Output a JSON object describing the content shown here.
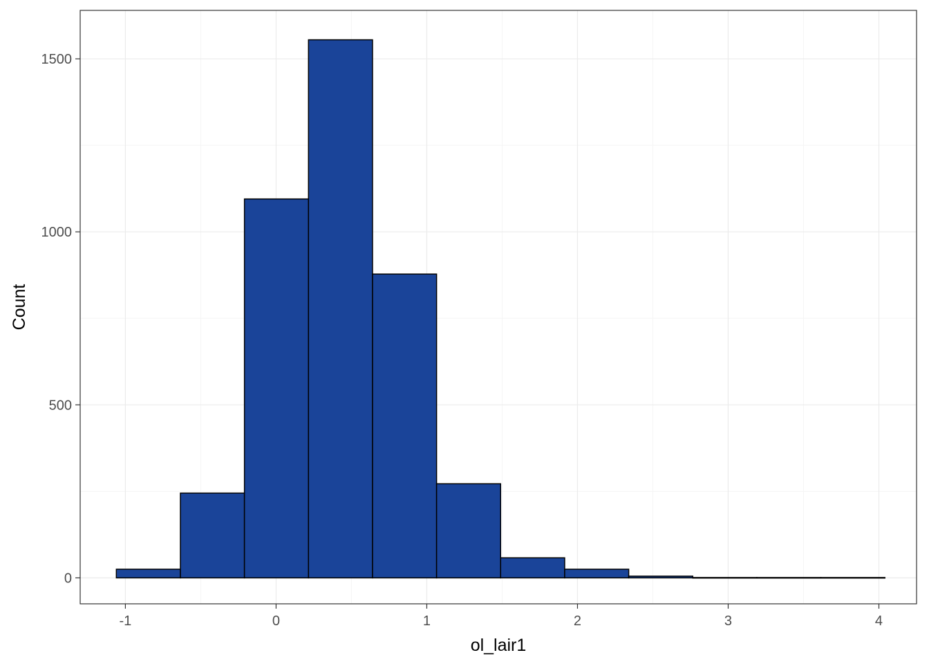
{
  "chart_data": {
    "type": "bar",
    "subtype": "histogram",
    "title": "",
    "xlabel": "ol_lair1",
    "ylabel": "Count",
    "xlim": [
      -1.3,
      4.25
    ],
    "ylim": [
      -75,
      1640
    ],
    "x_ticks": [
      {
        "value": -1,
        "label": "-1"
      },
      {
        "value": 0,
        "label": "0"
      },
      {
        "value": 1,
        "label": "1"
      },
      {
        "value": 2,
        "label": "2"
      },
      {
        "value": 3,
        "label": "3"
      },
      {
        "value": 4,
        "label": "4"
      }
    ],
    "y_ticks": [
      {
        "value": 0,
        "label": "0"
      },
      {
        "value": 500,
        "label": "500"
      },
      {
        "value": 1000,
        "label": "1000"
      },
      {
        "value": 1500,
        "label": "1500"
      }
    ],
    "x_minor_ticks": [
      -0.5,
      0.5,
      1.5,
      2.5,
      3.5
    ],
    "y_minor_ticks": [
      250,
      750,
      1250
    ],
    "grid": true,
    "legend": "none",
    "bins": [
      {
        "x0": -1.06,
        "x1": -0.635,
        "count": 25
      },
      {
        "x0": -0.635,
        "x1": -0.21,
        "count": 245
      },
      {
        "x0": -0.21,
        "x1": 0.215,
        "count": 1095
      },
      {
        "x0": 0.215,
        "x1": 0.64,
        "count": 1555
      },
      {
        "x0": 0.64,
        "x1": 1.065,
        "count": 878
      },
      {
        "x0": 1.065,
        "x1": 1.49,
        "count": 272
      },
      {
        "x0": 1.49,
        "x1": 1.915,
        "count": 58
      },
      {
        "x0": 1.915,
        "x1": 2.34,
        "count": 25
      },
      {
        "x0": 2.34,
        "x1": 2.765,
        "count": 5
      },
      {
        "x0": 2.765,
        "x1": 3.19,
        "count": 1
      },
      {
        "x0": 3.19,
        "x1": 3.615,
        "count": 1
      },
      {
        "x0": 3.615,
        "x1": 4.04,
        "count": 1
      }
    ],
    "colors": {
      "fill": "#1a4499",
      "outline": "#000000",
      "grid_major": "#ebebeb",
      "grid_minor": "#f5f5f5",
      "panel_border": "#333333"
    }
  }
}
